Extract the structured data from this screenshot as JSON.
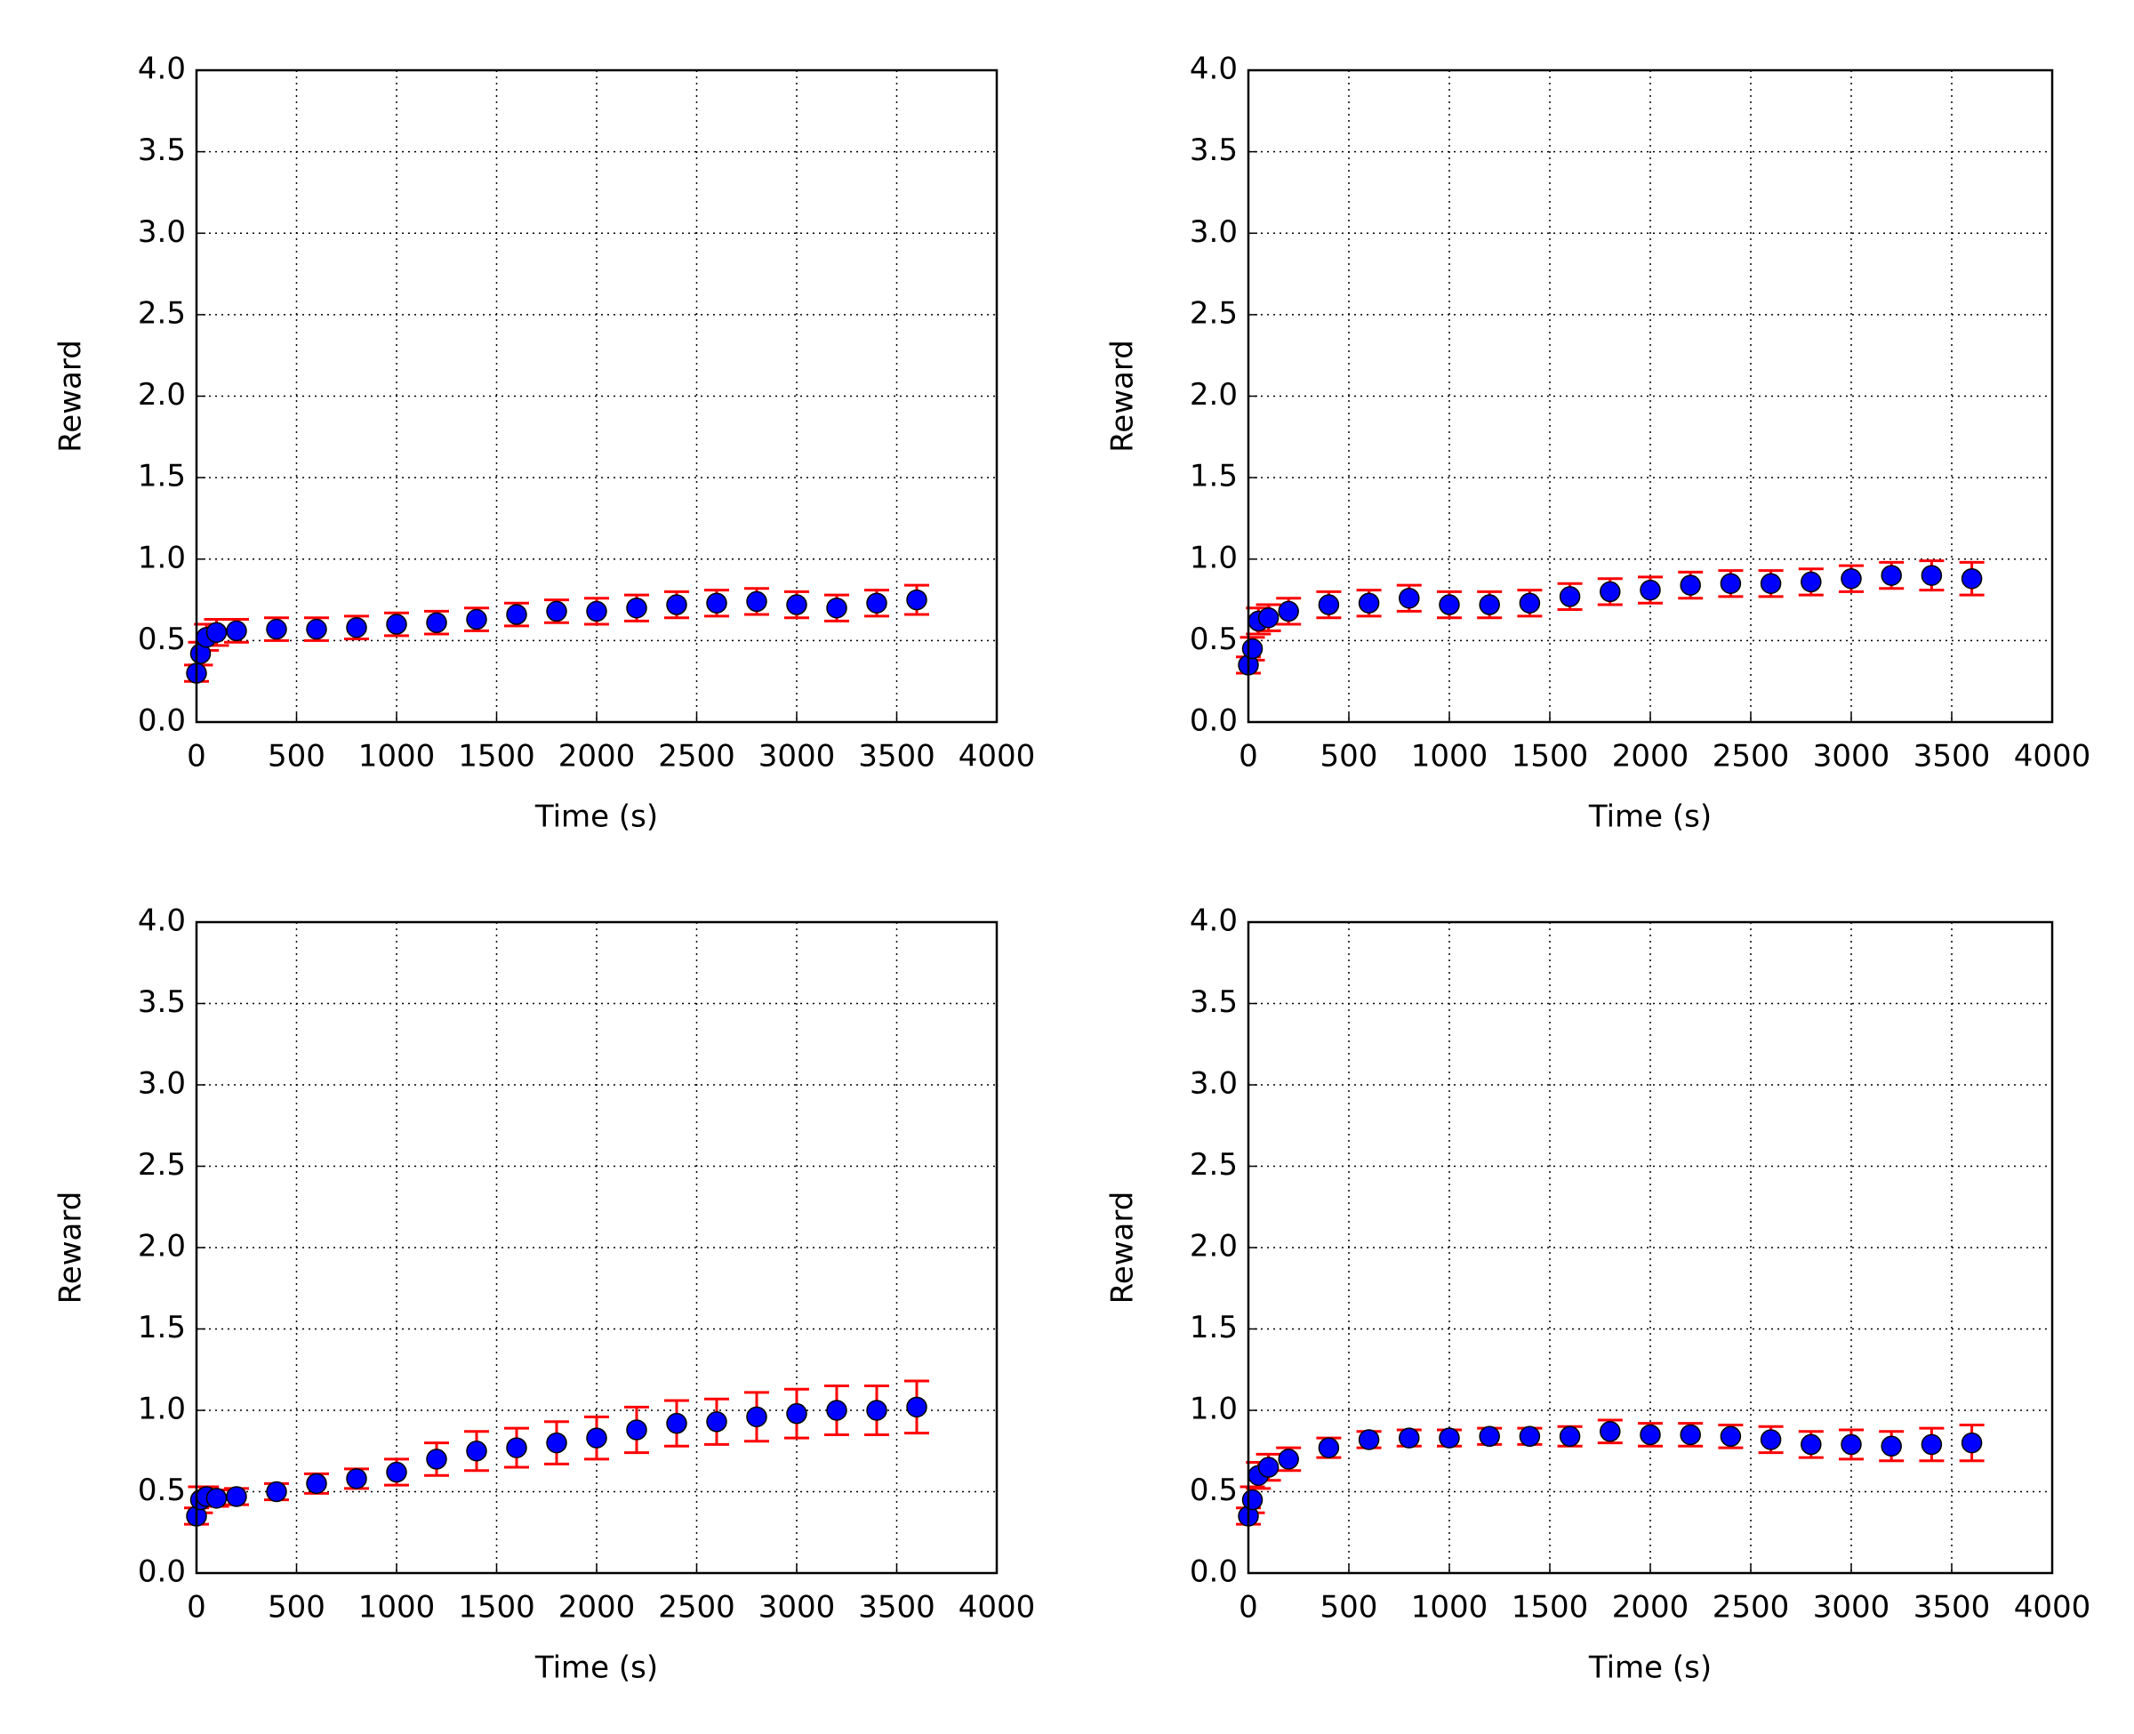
{
  "chart_data": [
    {
      "type": "scatter",
      "xlabel": "Time (s)",
      "ylabel": "Reward",
      "grid": true,
      "marker_color": "#0000ff",
      "error_color": "#ff0000",
      "x": [
        0,
        20,
        50,
        100,
        200,
        400,
        600,
        800,
        1000,
        1200,
        1400,
        1600,
        1800,
        2000,
        2200,
        2400,
        2600,
        2800,
        3000,
        3200,
        3400,
        3600
      ],
      "values": [
        0.3,
        0.42,
        0.52,
        0.55,
        0.56,
        0.57,
        0.57,
        0.58,
        0.6,
        0.61,
        0.63,
        0.66,
        0.68,
        0.68,
        0.7,
        0.72,
        0.73,
        0.74,
        0.72,
        0.7,
        0.73,
        0.75
      ],
      "errors": [
        0.05,
        0.07,
        0.08,
        0.08,
        0.07,
        0.07,
        0.07,
        0.07,
        0.07,
        0.07,
        0.07,
        0.07,
        0.07,
        0.08,
        0.08,
        0.08,
        0.08,
        0.08,
        0.08,
        0.08,
        0.08,
        0.09
      ],
      "xlim": [
        0,
        4000
      ],
      "xticks": [
        0,
        500,
        1000,
        1500,
        2000,
        2500,
        3000,
        3500,
        4000
      ],
      "ylim": [
        0,
        4
      ],
      "yticks": [
        {
          "value": 0,
          "label": "0.0"
        },
        0.5,
        {
          "value": 1,
          "label": "1.0"
        },
        1.5,
        {
          "value": 2,
          "label": "2.0"
        },
        2.5,
        {
          "value": 3,
          "label": "3.0"
        },
        3.5,
        {
          "value": 4,
          "label": "4.0"
        }
      ]
    },
    {
      "type": "scatter",
      "xlabel": "Time (s)",
      "ylabel": "Reward",
      "grid": true,
      "marker_color": "#0000ff",
      "error_color": "#ff0000",
      "x": [
        0,
        20,
        50,
        100,
        200,
        400,
        600,
        800,
        1000,
        1200,
        1400,
        1600,
        1800,
        2000,
        2200,
        2400,
        2600,
        2800,
        3000,
        3200,
        3400,
        3600
      ],
      "values": [
        0.35,
        0.45,
        0.62,
        0.64,
        0.68,
        0.72,
        0.73,
        0.76,
        0.72,
        0.72,
        0.73,
        0.77,
        0.8,
        0.81,
        0.84,
        0.85,
        0.85,
        0.86,
        0.88,
        0.9,
        0.9,
        0.88
      ],
      "errors": [
        0.05,
        0.07,
        0.08,
        0.08,
        0.08,
        0.08,
        0.08,
        0.08,
        0.08,
        0.08,
        0.08,
        0.08,
        0.08,
        0.08,
        0.08,
        0.08,
        0.08,
        0.08,
        0.08,
        0.08,
        0.09,
        0.1
      ],
      "xlim": [
        0,
        4000
      ],
      "xticks": [
        0,
        500,
        1000,
        1500,
        2000,
        2500,
        3000,
        3500,
        4000
      ],
      "ylim": [
        0,
        4
      ],
      "yticks": [
        {
          "value": 0,
          "label": "0.0"
        },
        0.5,
        {
          "value": 1,
          "label": "1.0"
        },
        1.5,
        {
          "value": 2,
          "label": "2.0"
        },
        2.5,
        {
          "value": 3,
          "label": "3.0"
        },
        3.5,
        {
          "value": 4,
          "label": "4.0"
        }
      ]
    },
    {
      "type": "scatter",
      "xlabel": "Time (s)",
      "ylabel": "Reward",
      "grid": true,
      "marker_color": "#0000ff",
      "error_color": "#ff0000",
      "x": [
        0,
        20,
        50,
        100,
        200,
        400,
        600,
        800,
        1000,
        1200,
        1400,
        1600,
        1800,
        2000,
        2200,
        2400,
        2600,
        2800,
        3000,
        3200,
        3400,
        3600
      ],
      "values": [
        0.35,
        0.45,
        0.47,
        0.46,
        0.47,
        0.5,
        0.55,
        0.58,
        0.62,
        0.7,
        0.75,
        0.77,
        0.8,
        0.83,
        0.88,
        0.92,
        0.93,
        0.96,
        0.98,
        1.0,
        1.0,
        1.02
      ],
      "errors": [
        0.05,
        0.08,
        0.06,
        0.05,
        0.05,
        0.05,
        0.06,
        0.06,
        0.08,
        0.1,
        0.12,
        0.12,
        0.13,
        0.13,
        0.14,
        0.14,
        0.14,
        0.15,
        0.15,
        0.15,
        0.15,
        0.16
      ],
      "xlim": [
        0,
        4000
      ],
      "xticks": [
        0,
        500,
        1000,
        1500,
        2000,
        2500,
        3000,
        3500,
        4000
      ],
      "ylim": [
        0,
        4
      ],
      "yticks": [
        {
          "value": 0,
          "label": "0.0"
        },
        0.5,
        {
          "value": 1,
          "label": "1.0"
        },
        1.5,
        {
          "value": 2,
          "label": "2.0"
        },
        2.5,
        {
          "value": 3,
          "label": "3.0"
        },
        3.5,
        {
          "value": 4,
          "label": "4.0"
        }
      ]
    },
    {
      "type": "scatter",
      "xlabel": "Time (s)",
      "ylabel": "Reward",
      "grid": true,
      "marker_color": "#0000ff",
      "error_color": "#ff0000",
      "x": [
        0,
        20,
        50,
        100,
        200,
        400,
        600,
        800,
        1000,
        1200,
        1400,
        1600,
        1800,
        2000,
        2200,
        2400,
        2600,
        2800,
        3000,
        3200,
        3400,
        3600
      ],
      "values": [
        0.35,
        0.45,
        0.6,
        0.65,
        0.7,
        0.77,
        0.82,
        0.83,
        0.83,
        0.84,
        0.84,
        0.84,
        0.87,
        0.85,
        0.85,
        0.84,
        0.82,
        0.79,
        0.79,
        0.78,
        0.79,
        0.8
      ],
      "errors": [
        0.05,
        0.08,
        0.08,
        0.08,
        0.07,
        0.06,
        0.05,
        0.05,
        0.05,
        0.05,
        0.05,
        0.06,
        0.07,
        0.07,
        0.07,
        0.07,
        0.08,
        0.08,
        0.09,
        0.09,
        0.1,
        0.11
      ],
      "xlim": [
        0,
        4000
      ],
      "xticks": [
        0,
        500,
        1000,
        1500,
        2000,
        2500,
        3000,
        3500,
        4000
      ],
      "ylim": [
        0,
        4
      ],
      "yticks": [
        {
          "value": 0,
          "label": "0.0"
        },
        0.5,
        {
          "value": 1,
          "label": "1.0"
        },
        1.5,
        {
          "value": 2,
          "label": "2.0"
        },
        2.5,
        {
          "value": 3,
          "label": "3.0"
        },
        3.5,
        {
          "value": 4,
          "label": "4.0"
        }
      ]
    }
  ]
}
